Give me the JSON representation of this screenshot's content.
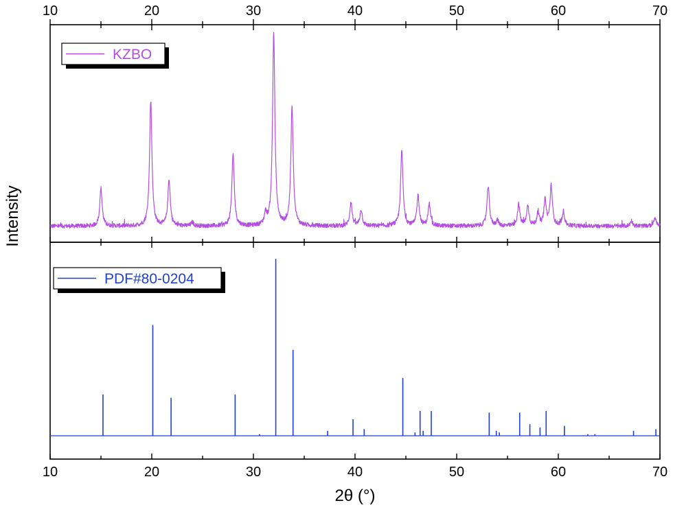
{
  "chart_data": {
    "type": "line",
    "xlabel": "2θ (°)",
    "ylabel": "Intensity",
    "xlim": [
      10,
      70
    ],
    "xticks": [
      10,
      20,
      30,
      40,
      50,
      60,
      70
    ],
    "xtick_labels": [
      "10",
      "20",
      "30",
      "40",
      "50",
      "60",
      "70"
    ],
    "grid": false,
    "panels": [
      {
        "name": "KZBO",
        "kind": "pattern",
        "color": "#b24fe0",
        "legend_position": "top-left",
        "ylim": [
          0,
          110
        ],
        "baseline": 4,
        "noise": 1.2,
        "peak_width": 0.14,
        "peaks": [
          {
            "x": 15.0,
            "y": 21
          },
          {
            "x": 19.9,
            "y": 70
          },
          {
            "x": 21.7,
            "y": 26
          },
          {
            "x": 24.0,
            "y": 2
          },
          {
            "x": 28.0,
            "y": 40
          },
          {
            "x": 31.2,
            "y": 6
          },
          {
            "x": 32.0,
            "y": 107
          },
          {
            "x": 33.8,
            "y": 66
          },
          {
            "x": 39.6,
            "y": 13
          },
          {
            "x": 40.6,
            "y": 9
          },
          {
            "x": 44.6,
            "y": 42
          },
          {
            "x": 46.2,
            "y": 17
          },
          {
            "x": 47.3,
            "y": 12
          },
          {
            "x": 53.1,
            "y": 22
          },
          {
            "x": 54.0,
            "y": 3
          },
          {
            "x": 56.1,
            "y": 12
          },
          {
            "x": 57.0,
            "y": 11
          },
          {
            "x": 58.0,
            "y": 7
          },
          {
            "x": 58.7,
            "y": 14
          },
          {
            "x": 59.3,
            "y": 22
          },
          {
            "x": 60.5,
            "y": 8
          },
          {
            "x": 67.2,
            "y": 3
          },
          {
            "x": 69.5,
            "y": 5
          }
        ]
      },
      {
        "name": "PDF#80-0204",
        "kind": "sticks",
        "color": "#1f3fd6",
        "legend_position": "top-left",
        "ylim": [
          0,
          110
        ],
        "baseline": 0,
        "sticks": [
          {
            "x": 15.2,
            "y": 25
          },
          {
            "x": 20.1,
            "y": 67
          },
          {
            "x": 21.9,
            "y": 23
          },
          {
            "x": 28.2,
            "y": 25
          },
          {
            "x": 30.6,
            "y": 1
          },
          {
            "x": 32.2,
            "y": 107
          },
          {
            "x": 33.9,
            "y": 52
          },
          {
            "x": 37.3,
            "y": 3
          },
          {
            "x": 39.8,
            "y": 10
          },
          {
            "x": 40.9,
            "y": 4
          },
          {
            "x": 44.7,
            "y": 35
          },
          {
            "x": 45.9,
            "y": 2
          },
          {
            "x": 46.4,
            "y": 15
          },
          {
            "x": 46.7,
            "y": 3
          },
          {
            "x": 47.5,
            "y": 15
          },
          {
            "x": 53.2,
            "y": 14
          },
          {
            "x": 53.9,
            "y": 3
          },
          {
            "x": 54.2,
            "y": 2
          },
          {
            "x": 56.2,
            "y": 14
          },
          {
            "x": 57.2,
            "y": 7
          },
          {
            "x": 58.2,
            "y": 5
          },
          {
            "x": 58.8,
            "y": 15
          },
          {
            "x": 60.6,
            "y": 6
          },
          {
            "x": 62.9,
            "y": 1
          },
          {
            "x": 63.6,
            "y": 1
          },
          {
            "x": 67.4,
            "y": 3
          },
          {
            "x": 69.6,
            "y": 4
          }
        ]
      }
    ]
  }
}
